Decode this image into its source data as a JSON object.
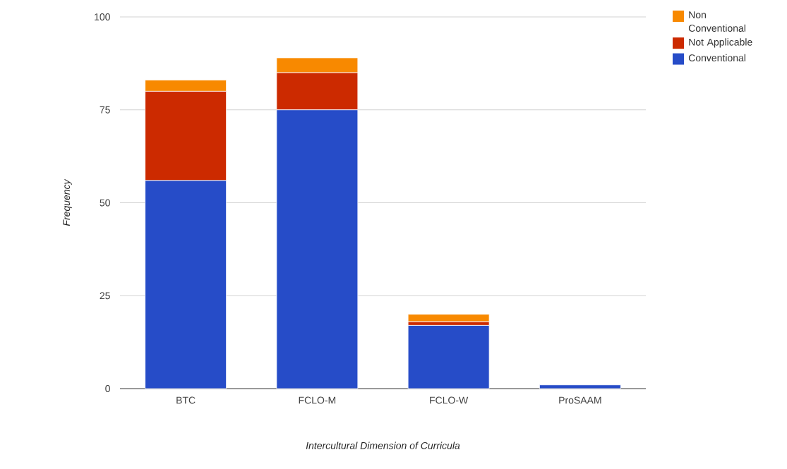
{
  "chart_data": {
    "type": "bar",
    "stacked": true,
    "xlabel": "Intercultural Dimension of Curricula",
    "ylabel": "Frequency",
    "categories": [
      "BTC",
      "FCLO-M",
      "FCLO-W",
      "ProSAAM"
    ],
    "series": [
      {
        "name": "Conventional",
        "color": "#264cc8",
        "values": [
          56,
          75,
          17,
          1
        ]
      },
      {
        "name": "Not Applicable",
        "color": "#cc2a00",
        "values": [
          24,
          10,
          1,
          0
        ]
      },
      {
        "name": "Non Conventional",
        "color": "#f88900",
        "values": [
          3,
          4,
          2,
          0
        ]
      }
    ],
    "ylim": [
      0,
      100
    ],
    "yticks": [
      0,
      25,
      50,
      75,
      100
    ],
    "grid": "y",
    "legend": "right"
  }
}
